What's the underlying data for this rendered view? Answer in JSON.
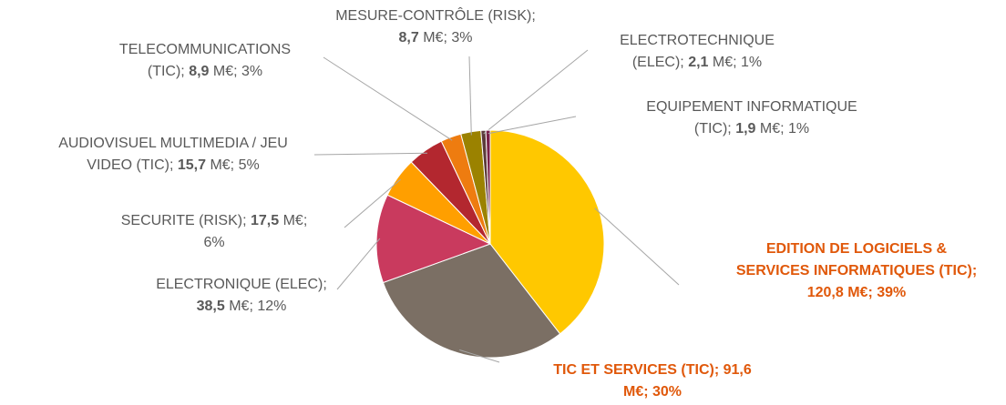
{
  "chart_data": {
    "type": "pie",
    "categories": [
      "EDITION DE LOGICIELS & SERVICES INFORMATIQUES (TIC)",
      "TIC ET SERVICES (TIC)",
      "ELECTRONIQUE (ELEC)",
      "SECURITE (RISK)",
      "AUDIOVISUEL MULTIMEDIA / JEU VIDEO (TIC)",
      "TELECOMMUNICATIONS (TIC)",
      "MESURE-CONTRÔLE (RISK)",
      "ELECTROTECHNIQUE (ELEC)",
      "EQUIPEMENT INFORMATIQUE (TIC)"
    ],
    "values": [
      120.8,
      91.6,
      38.5,
      17.5,
      15.7,
      8.9,
      8.7,
      2.1,
      1.9
    ],
    "value_labels": [
      "120,8",
      "91,6",
      "38,5",
      "17,5",
      "15,7",
      "8,9",
      "8,7",
      "2,1",
      "1,9"
    ],
    "unit": "M€",
    "percentages": [
      39,
      30,
      12,
      6,
      5,
      3,
      3,
      1,
      1
    ],
    "percent_labels": [
      "39%",
      "30%",
      "12%",
      "6%",
      "5%",
      "3%",
      "3%",
      "1%",
      "1%"
    ],
    "colors": [
      "#ffc800",
      "#7b6f64",
      "#c93a5e",
      "#ff9f00",
      "#b3272f",
      "#ee7c10",
      "#9b8200",
      "#5c3a3a",
      "#7a1f48"
    ],
    "label_colors": [
      "#e0580a",
      "#e0580a",
      "#595959",
      "#595959",
      "#595959",
      "#595959",
      "#595959",
      "#595959",
      "#595959"
    ]
  }
}
